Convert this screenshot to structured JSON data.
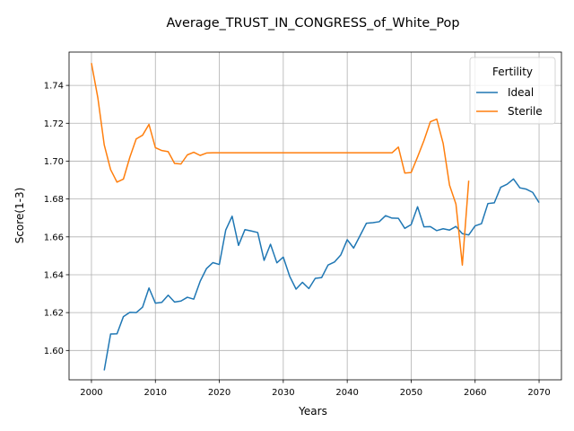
{
  "chart_data": {
    "type": "line",
    "title": "Average_TRUST_IN_CONGRESS_of_White_Pop",
    "xlabel": "Years",
    "ylabel": "Score(1-3)",
    "xlim": [
      1996.5,
      2073.5
    ],
    "ylim": [
      1.5845,
      1.7576
    ],
    "xticks": [
      2000,
      2010,
      2020,
      2030,
      2040,
      2050,
      2060,
      2070
    ],
    "yticks": [
      1.6,
      1.62,
      1.64,
      1.66,
      1.68,
      1.7,
      1.72,
      1.74
    ],
    "ytick_labels": [
      "1.60",
      "1.62",
      "1.64",
      "1.66",
      "1.68",
      "1.70",
      "1.72",
      "1.74"
    ],
    "grid": true,
    "legend": {
      "title": "Fertility",
      "placement": "top-right"
    },
    "series": [
      {
        "name": "Ideal",
        "color": "#1f77b4",
        "x": [
          2002,
          2003,
          2004,
          2005,
          2006,
          2007,
          2008,
          2009,
          2010,
          2011,
          2012,
          2013,
          2014,
          2015,
          2016,
          2017,
          2018,
          2019,
          2020,
          2021,
          2022,
          2023,
          2024,
          2025,
          2026,
          2027,
          2028,
          2029,
          2030,
          2031,
          2032,
          2033,
          2034,
          2035,
          2036,
          2037,
          2038,
          2039,
          2040,
          2041,
          2042,
          2043,
          2044,
          2045,
          2046,
          2047,
          2048,
          2049,
          2050,
          2051,
          2052,
          2053,
          2054,
          2055,
          2056,
          2057,
          2058,
          2059,
          2060,
          2061,
          2062,
          2063,
          2064,
          2065,
          2066,
          2067,
          2068,
          2069,
          2070
        ],
        "values": [
          1.5895,
          1.6087,
          1.6088,
          1.6179,
          1.6201,
          1.62,
          1.6229,
          1.633,
          1.625,
          1.6254,
          1.6292,
          1.6256,
          1.6261,
          1.6281,
          1.6271,
          1.6365,
          1.6433,
          1.6464,
          1.6454,
          1.6636,
          1.6709,
          1.6555,
          1.6638,
          1.6631,
          1.6623,
          1.6476,
          1.6561,
          1.6463,
          1.6493,
          1.6392,
          1.6324,
          1.636,
          1.6327,
          1.6381,
          1.6385,
          1.6451,
          1.6467,
          1.6505,
          1.6585,
          1.6541,
          1.6606,
          1.6672,
          1.6675,
          1.668,
          1.6712,
          1.6699,
          1.6698,
          1.6645,
          1.6665,
          1.6759,
          1.6653,
          1.6654,
          1.6633,
          1.6643,
          1.6636,
          1.6655,
          1.6617,
          1.661,
          1.6658,
          1.667,
          1.6776,
          1.678,
          1.6862,
          1.6878,
          1.6906,
          1.6859,
          1.6852,
          1.6835,
          1.6781
        ]
      },
      {
        "name": "Sterile",
        "color": "#ff7f0e",
        "x": [
          2000,
          2001,
          2002,
          2003,
          2004,
          2005,
          2006,
          2007,
          2008,
          2009,
          2010,
          2011,
          2012,
          2013,
          2014,
          2015,
          2016,
          2017,
          2018,
          2019,
          2020,
          2021,
          2022,
          2023,
          2024,
          2025,
          2026,
          2027,
          2028,
          2029,
          2030,
          2031,
          2032,
          2033,
          2034,
          2035,
          2036,
          2037,
          2038,
          2039,
          2040,
          2041,
          2042,
          2043,
          2044,
          2045,
          2046,
          2047,
          2048,
          2049,
          2050,
          2051,
          2052,
          2053,
          2054,
          2055,
          2056,
          2057,
          2058,
          2059
        ],
        "values": [
          1.7518,
          1.7335,
          1.7086,
          1.6955,
          1.6889,
          1.6905,
          1.702,
          1.7117,
          1.7137,
          1.7194,
          1.7071,
          1.7056,
          1.705,
          1.6988,
          1.6985,
          1.7033,
          1.7047,
          1.703,
          1.7043,
          1.7044,
          1.7044,
          1.7044,
          1.7044,
          1.7044,
          1.7044,
          1.7044,
          1.7044,
          1.7044,
          1.7044,
          1.7044,
          1.7044,
          1.7044,
          1.7044,
          1.7044,
          1.7044,
          1.7044,
          1.7044,
          1.7044,
          1.7044,
          1.7044,
          1.7044,
          1.7044,
          1.7044,
          1.7044,
          1.7044,
          1.7044,
          1.7044,
          1.7044,
          1.7074,
          1.6937,
          1.694,
          1.7022,
          1.7109,
          1.7208,
          1.7222,
          1.7094,
          1.6873,
          1.6773,
          1.6451,
          1.6897
        ]
      }
    ]
  }
}
